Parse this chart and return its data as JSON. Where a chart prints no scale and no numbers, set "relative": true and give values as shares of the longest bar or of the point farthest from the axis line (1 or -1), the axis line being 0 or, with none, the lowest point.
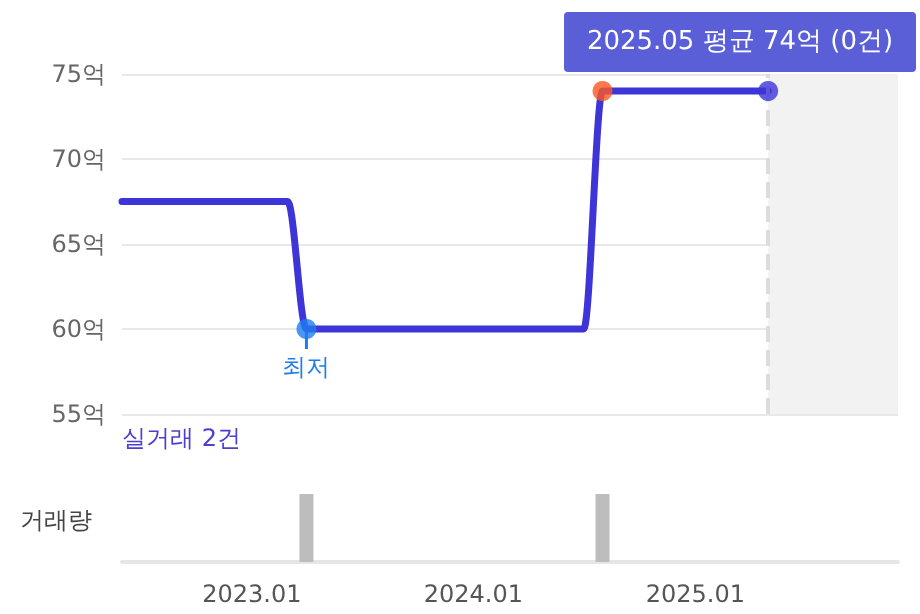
{
  "chart_data": [
    {
      "type": "line",
      "x": [
        "2022-06",
        "2023-03",
        "2023-04",
        "2024-07",
        "2024-08",
        "2025-05"
      ],
      "series": [
        {
          "type": "line",
          "color": "#3d35d8",
          "values": [
            67.5,
            67.5,
            60,
            60,
            74,
            74
          ],
          "marker": "none"
        },
        {
          "type": "scatter",
          "x": [
            "2023-04",
            "2024-08",
            "2025-05"
          ],
          "values": [
            60,
            74,
            74
          ],
          "colors": [
            "#1e7cf0",
            "#ff5722",
            "#3d35d8"
          ],
          "marker": "circle"
        }
      ],
      "ylim": [
        55,
        75
      ],
      "yticks": [
        {
          "value": 55,
          "label": "55억"
        },
        {
          "value": 60,
          "label": "60억"
        },
        {
          "value": 65,
          "label": "65억"
        },
        {
          "value": 70,
          "label": "70억"
        },
        {
          "value": 75,
          "label": "75억"
        }
      ],
      "xlim": [
        "2022-06",
        "2025-12"
      ],
      "grid": "y",
      "tick_labels": "y",
      "line_style": "solid",
      "ref_lines": [
        {
          "axis": "x",
          "value": "2025-05",
          "label": null,
          "color": "#dddddd",
          "line_style": "dashed"
        }
      ],
      "bands": [
        {
          "axis": "x",
          "from": "2025-05",
          "to": "2025-12",
          "label": null,
          "color": "#f2f2f2"
        }
      ],
      "annotations": [
        {
          "text": "최저",
          "x": "2023-04",
          "y": 60
        },
        {
          "text": "2025.05 평균 74억 (0건)",
          "x": "2025-05",
          "y": 74
        },
        "실거래 2건"
      ]
    },
    {
      "type": "bar",
      "x": [
        "2023-04",
        "2024-08"
      ],
      "values": [
        1,
        1
      ],
      "relative": true,
      "color": "#bdbdbd",
      "ylabel": "거래량",
      "xlim": [
        "2022-06",
        "2025-12"
      ],
      "xticks": [
        {
          "value": "2023-01",
          "label": "2023.01"
        },
        {
          "value": "2024-01",
          "label": "2024.01"
        },
        {
          "value": "2025-01",
          "label": "2025.01"
        }
      ],
      "tick_labels": "x"
    }
  ]
}
